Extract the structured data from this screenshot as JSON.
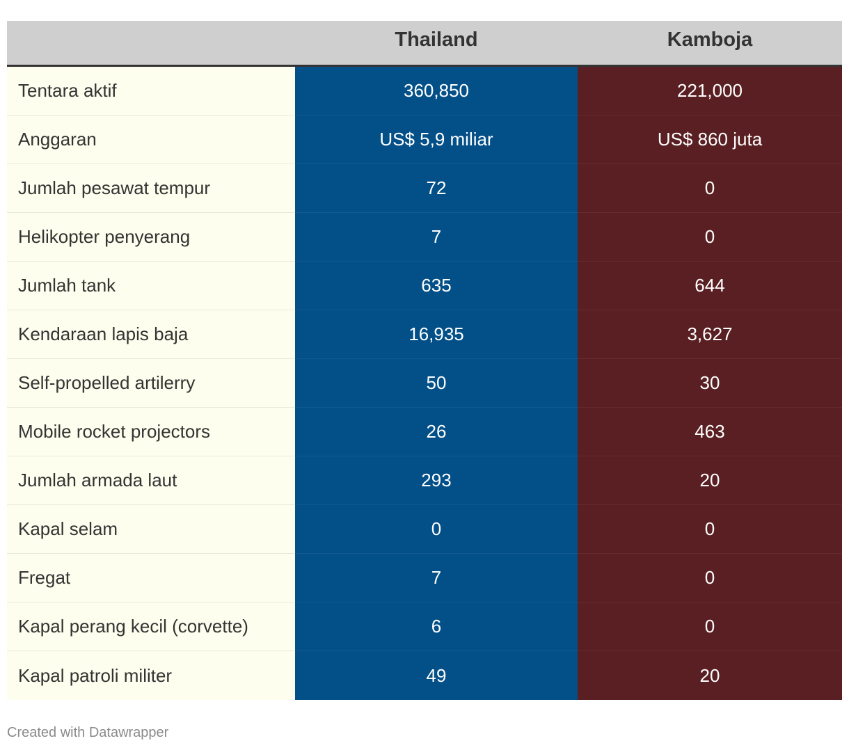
{
  "colors": {
    "header_bg": "#cfcfcf",
    "label_bg": "#fefeee",
    "thailand": "#034f88",
    "kamboja": "#5a1f22"
  },
  "chart_data": {
    "type": "table",
    "columns": [
      "",
      "Thailand",
      "Kamboja"
    ],
    "rows": [
      {
        "label": "Tentara aktif",
        "thailand": "360,850",
        "kamboja": "221,000"
      },
      {
        "label": "Anggaran",
        "thailand": "US$ 5,9 miliar",
        "kamboja": "US$ 860 juta"
      },
      {
        "label": "Jumlah pesawat tempur",
        "thailand": "72",
        "kamboja": "0"
      },
      {
        "label": "Helikopter penyerang",
        "thailand": "7",
        "kamboja": "0"
      },
      {
        "label": "Jumlah tank",
        "thailand": "635",
        "kamboja": "644"
      },
      {
        "label": "Kendaraan lapis baja",
        "thailand": "16,935",
        "kamboja": "3,627"
      },
      {
        "label": "Self-propelled artilerry",
        "thailand": "50",
        "kamboja": "30"
      },
      {
        "label": "Mobile rocket projectors",
        "thailand": "26",
        "kamboja": "463"
      },
      {
        "label": "Jumlah armada laut",
        "thailand": "293",
        "kamboja": "20"
      },
      {
        "label": "Kapal selam",
        "thailand": "0",
        "kamboja": "0"
      },
      {
        "label": "Fregat",
        "thailand": "7",
        "kamboja": "0"
      },
      {
        "label": "Kapal perang kecil (corvette)",
        "thailand": "6",
        "kamboja": "0"
      },
      {
        "label": "Kapal patroli militer",
        "thailand": "49",
        "kamboja": "20"
      }
    ]
  },
  "footer": {
    "credit": "Created with Datawrapper"
  }
}
